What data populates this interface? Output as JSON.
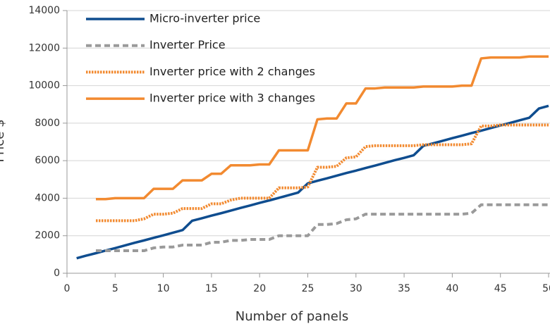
{
  "chart_data": {
    "type": "line",
    "y_label": "Price $",
    "x_label": "Number of panels",
    "x": [
      1,
      2,
      3,
      4,
      5,
      6,
      7,
      8,
      9,
      10,
      11,
      12,
      13,
      14,
      15,
      16,
      17,
      18,
      19,
      20,
      21,
      22,
      23,
      24,
      25,
      26,
      27,
      28,
      29,
      30,
      31,
      32,
      33,
      34,
      35,
      36,
      37,
      38,
      39,
      40,
      41,
      42,
      43,
      44,
      45,
      46,
      47,
      48,
      49,
      50
    ],
    "series": [
      {
        "name": "Micro-inverter price",
        "color": "#0f4d8f",
        "style": "solid",
        "values": [
          800,
          940,
          1070,
          1210,
          1340,
          1480,
          1620,
          1750,
          1890,
          2020,
          2160,
          2300,
          2800,
          2930,
          3070,
          3200,
          3340,
          3480,
          3610,
          3750,
          3880,
          4020,
          4160,
          4300,
          4790,
          4930,
          5060,
          5200,
          5340,
          5470,
          5610,
          5740,
          5880,
          6020,
          6150,
          6290,
          6790,
          6920,
          7060,
          7200,
          7330,
          7470,
          7600,
          7740,
          7880,
          8010,
          8150,
          8290,
          8780,
          8920
        ]
      },
      {
        "name": "Inverter Price",
        "color": "#9a9a9a",
        "style": "dashed",
        "values": [
          null,
          null,
          1200,
          1200,
          1200,
          1200,
          1200,
          1200,
          1350,
          1400,
          1400,
          1500,
          1500,
          1500,
          1650,
          1650,
          1750,
          1750,
          1800,
          1800,
          1800,
          2000,
          2000,
          2000,
          2000,
          2600,
          2600,
          2650,
          2850,
          2900,
          3150,
          3150,
          3150,
          3150,
          3150,
          3150,
          3150,
          3150,
          3150,
          3150,
          3150,
          3200,
          3650,
          3650,
          3650,
          3650,
          3650,
          3650,
          3650,
          3650
        ]
      },
      {
        "name": "Inverter price with 2 changes",
        "color": "#f28a30",
        "style": "dotted",
        "values": [
          null,
          null,
          2800,
          2800,
          2800,
          2800,
          2800,
          2900,
          3150,
          3150,
          3200,
          3450,
          3450,
          3450,
          3700,
          3700,
          3900,
          4000,
          4000,
          4000,
          4000,
          4550,
          4550,
          4550,
          4600,
          5650,
          5650,
          5700,
          6150,
          6200,
          6750,
          6800,
          6800,
          6800,
          6800,
          6800,
          6850,
          6850,
          6850,
          6850,
          6850,
          6900,
          7850,
          7850,
          7900,
          7900,
          7900,
          7900,
          7900,
          7900
        ]
      },
      {
        "name": "Inverter price with 3 changes",
        "color": "#f28a30",
        "style": "solid",
        "values": [
          null,
          null,
          3950,
          3950,
          4000,
          4000,
          4000,
          4000,
          4500,
          4500,
          4500,
          4950,
          4950,
          4950,
          5300,
          5300,
          5750,
          5750,
          5750,
          5800,
          5800,
          6550,
          6550,
          6550,
          6550,
          8200,
          8250,
          8250,
          9050,
          9050,
          9850,
          9850,
          9900,
          9900,
          9900,
          9900,
          9950,
          9950,
          9950,
          9950,
          10000,
          10000,
          11450,
          11500,
          11500,
          11500,
          11500,
          11550,
          11550,
          11550
        ]
      }
    ],
    "xlim": [
      0,
      50
    ],
    "xticks": [
      0,
      5,
      10,
      15,
      20,
      25,
      30,
      35,
      40,
      45,
      50
    ],
    "ylim": [
      0,
      14000
    ],
    "yticks": [
      0,
      2000,
      4000,
      6000,
      8000,
      10000,
      12000,
      14000
    ],
    "grid": true,
    "legend": "top-left"
  }
}
